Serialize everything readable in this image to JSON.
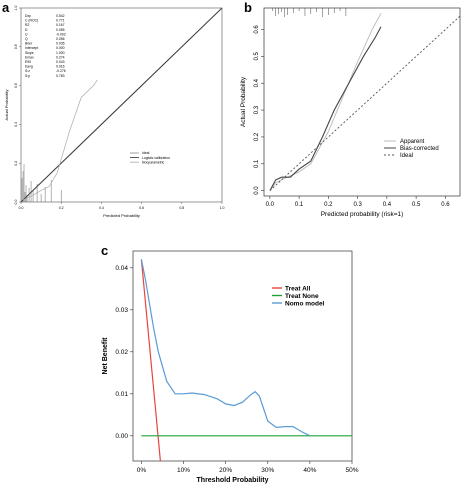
{
  "panels": {
    "a": {
      "letter": "a"
    },
    "b": {
      "letter": "b"
    },
    "c": {
      "letter": "c"
    }
  },
  "chart_data": [
    {
      "panel": "a",
      "type": "line",
      "xlabel": "Predicted Probability",
      "ylabel": "Actual Probability",
      "xlim": [
        0.0,
        1.0
      ],
      "ylim": [
        0.0,
        1.0
      ],
      "x_ticks": [
        "0.0",
        "0.2",
        "0.4",
        "0.6",
        "0.8",
        "1.0"
      ],
      "y_ticks": [
        "0.0",
        "0.2",
        "0.4",
        "0.6",
        "0.8",
        "1.0"
      ],
      "grid": false,
      "legend_position": "center-right",
      "stats": [
        {
          "label": "Dxy",
          "value": "0.542"
        },
        {
          "label": "C (ROC)",
          "value": "0.771"
        },
        {
          "label": "R2",
          "value": "0.167"
        },
        {
          "label": "D",
          "value": "0.055"
        },
        {
          "label": "U",
          "value": "-0.002"
        },
        {
          "label": "Q",
          "value": "0.056"
        },
        {
          "label": "Brier",
          "value": "0.035"
        },
        {
          "label": "Intercept",
          "value": "0.000"
        },
        {
          "label": "Slope",
          "value": "1.000"
        },
        {
          "label": "Emax",
          "value": "0.274"
        },
        {
          "label": "E90",
          "value": "0.043"
        },
        {
          "label": "Eavg",
          "value": "0.016"
        },
        {
          "label": "S:z",
          "value": "-0.276"
        },
        {
          "label": "S:p",
          "value": "0.783"
        }
      ],
      "series": [
        {
          "name": "Ideal",
          "color": "#888888",
          "x": [
            0,
            1
          ],
          "y": [
            0,
            1
          ]
        },
        {
          "name": "Logistic calibration",
          "color": "#333333",
          "x": [
            0,
            1
          ],
          "y": [
            0,
            1
          ]
        },
        {
          "name": "Nonparametric",
          "color": "#aaaaaa",
          "x": [
            0.01,
            0.03,
            0.06,
            0.1,
            0.14,
            0.18,
            0.24,
            0.3,
            0.36,
            0.38
          ],
          "y": [
            0.01,
            0.02,
            0.035,
            0.06,
            0.08,
            0.15,
            0.36,
            0.54,
            0.6,
            0.63
          ]
        }
      ],
      "rug_x": [
        0.005,
        0.01,
        0.015,
        0.02,
        0.025,
        0.03,
        0.04,
        0.05,
        0.06,
        0.08,
        0.1,
        0.12,
        0.15,
        0.2
      ]
    },
    {
      "panel": "b",
      "type": "line",
      "xlabel": "Predicted probability (risk=1)",
      "ylabel": "Actual Probability",
      "xlim": [
        -0.02,
        0.65
      ],
      "ylim": [
        -0.02,
        0.68
      ],
      "x_ticks": [
        "0.0",
        "0.1",
        "0.2",
        "0.3",
        "0.4",
        "0.5",
        "0.6"
      ],
      "x_tick_values": [
        0.0,
        0.1,
        0.2,
        0.3,
        0.4,
        0.5,
        0.6
      ],
      "y_ticks": [
        "0.0",
        "0.1",
        "0.2",
        "0.3",
        "0.4",
        "0.5",
        "0.6"
      ],
      "y_tick_values": [
        0.0,
        0.1,
        0.2,
        0.3,
        0.4,
        0.5,
        0.6
      ],
      "grid": false,
      "legend_position": "bottom-right",
      "series": [
        {
          "name": "Apparent",
          "color": "#bbbbbb",
          "dash": "solid",
          "x": [
            0.0,
            0.02,
            0.05,
            0.1,
            0.14,
            0.2,
            0.25,
            0.3,
            0.35,
            0.38
          ],
          "y": [
            0.0,
            0.03,
            0.045,
            0.07,
            0.1,
            0.22,
            0.35,
            0.48,
            0.6,
            0.66
          ]
        },
        {
          "name": "Bias-corrected",
          "color": "#444444",
          "dash": "solid",
          "x": [
            0.0,
            0.02,
            0.04,
            0.07,
            0.1,
            0.14,
            0.18,
            0.22,
            0.27,
            0.32,
            0.36,
            0.38
          ],
          "y": [
            0.0,
            0.04,
            0.05,
            0.05,
            0.08,
            0.11,
            0.2,
            0.3,
            0.4,
            0.5,
            0.57,
            0.61
          ]
        },
        {
          "name": "Ideal",
          "color": "#555555",
          "dash": "dotted",
          "x": [
            0.0,
            0.65
          ],
          "y": [
            0.0,
            0.65
          ]
        }
      ],
      "rug_x": [
        0.01,
        0.02,
        0.03,
        0.04,
        0.05,
        0.06,
        0.08,
        0.1,
        0.12,
        0.14,
        0.16,
        0.18,
        0.2,
        0.22,
        0.24,
        0.26
      ]
    },
    {
      "panel": "c",
      "type": "line",
      "xlabel": "Threshold Probability",
      "ylabel": "Net Benefit",
      "xlim": [
        -0.02,
        0.5
      ],
      "ylim": [
        -0.006,
        0.044
      ],
      "x_ticks": [
        "0%",
        "10%",
        "20%",
        "30%",
        "40%",
        "50%"
      ],
      "x_tick_values": [
        0.0,
        0.1,
        0.2,
        0.3,
        0.4,
        0.5
      ],
      "y_ticks": [
        "0.00",
        "0.01",
        "0.02",
        "0.03",
        "0.04"
      ],
      "y_tick_values": [
        0.0,
        0.01,
        0.02,
        0.03,
        0.04
      ],
      "grid": false,
      "legend_position": "top-right",
      "series": [
        {
          "name": "Treat All",
          "color": "#e8453c",
          "x": [
            0.0,
            0.045
          ],
          "y": [
            0.042,
            -0.006
          ]
        },
        {
          "name": "Treat None",
          "color": "#1fa23a",
          "x": [
            0.0,
            0.5
          ],
          "y": [
            0.0,
            0.0
          ]
        },
        {
          "name": "Nomo model",
          "color": "#5b9bd5",
          "x": [
            0.0,
            0.01,
            0.02,
            0.03,
            0.04,
            0.06,
            0.08,
            0.1,
            0.12,
            0.15,
            0.18,
            0.2,
            0.22,
            0.24,
            0.26,
            0.27,
            0.28,
            0.3,
            0.32,
            0.34,
            0.36,
            0.38,
            0.4
          ],
          "y": [
            0.042,
            0.037,
            0.031,
            0.025,
            0.02,
            0.013,
            0.01,
            0.01,
            0.0102,
            0.0098,
            0.0088,
            0.0076,
            0.0072,
            0.008,
            0.0098,
            0.0105,
            0.0095,
            0.0035,
            0.002,
            0.0022,
            0.0022,
            0.001,
            0.0
          ]
        }
      ]
    }
  ]
}
